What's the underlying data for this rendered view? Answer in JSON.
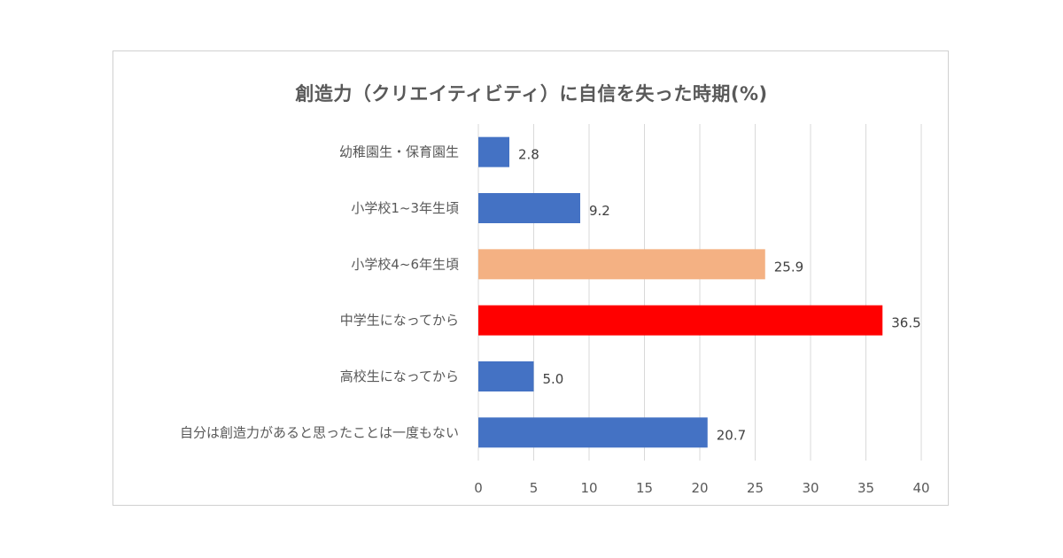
{
  "chart_data": {
    "type": "bar",
    "orientation": "horizontal",
    "title": "創造力（クリエイティビティ）に自信を失った時期(%)",
    "categories": [
      "幼稚園生・保育園生",
      "小学校1~3年生頃",
      "小学校4~6年生頃",
      "中学生になってから",
      "高校生になってから",
      "自分は創造力があると思ったことは一度もない"
    ],
    "values": [
      2.8,
      9.2,
      25.9,
      36.5,
      5.0,
      20.7
    ],
    "value_labels": [
      "2.8",
      "9.2",
      "25.9",
      "36.5",
      "5.0",
      "20.7"
    ],
    "colors": [
      "#4472c4",
      "#4472c4",
      "#f4b183",
      "#ff0000",
      "#4472c4",
      "#4472c4"
    ],
    "xlim": [
      0,
      40
    ],
    "xticks": [
      "0",
      "5",
      "10",
      "15",
      "20",
      "25",
      "30",
      "35",
      "40"
    ],
    "grid": true,
    "legend": "none",
    "xlabel": "",
    "ylabel": ""
  }
}
